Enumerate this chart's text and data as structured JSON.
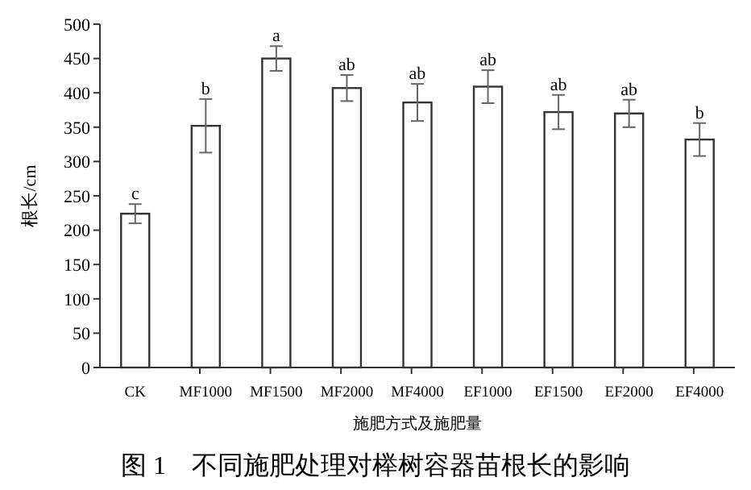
{
  "chart_data": {
    "type": "bar",
    "title": "图 1　不同施肥处理对榉树容器苗根长的影响",
    "xlabel": "施肥方式及施肥量",
    "ylabel": "根长/cm",
    "categories": [
      "CK",
      "MF1000",
      "MF1500",
      "MF2000",
      "MF4000",
      "EF1000",
      "EF1500",
      "EF2000",
      "EF4000"
    ],
    "values": [
      224,
      352,
      450,
      407,
      386,
      409,
      372,
      370,
      332
    ],
    "errors": [
      14,
      39,
      18,
      19,
      27,
      24,
      25,
      20,
      24
    ],
    "color": "#ffffff",
    "ylim": [
      0,
      500
    ],
    "yticks": [
      0,
      50,
      100,
      150,
      200,
      250,
      300,
      350,
      400,
      450,
      500
    ],
    "annotations": [
      {
        "text": "c",
        "x": "CK",
        "y": 238
      },
      {
        "text": "b",
        "x": "MF1000",
        "y": 391
      },
      {
        "text": "a",
        "x": "MF1500",
        "y": 468
      },
      {
        "text": "ab",
        "x": "MF2000",
        "y": 426
      },
      {
        "text": "ab",
        "x": "MF4000",
        "y": 413
      },
      {
        "text": "ab",
        "x": "EF1000",
        "y": 433
      },
      {
        "text": "ab",
        "x": "EF1500",
        "y": 397
      },
      {
        "text": "ab",
        "x": "EF2000",
        "y": 390
      },
      {
        "text": "b",
        "x": "EF4000",
        "y": 356
      }
    ]
  }
}
